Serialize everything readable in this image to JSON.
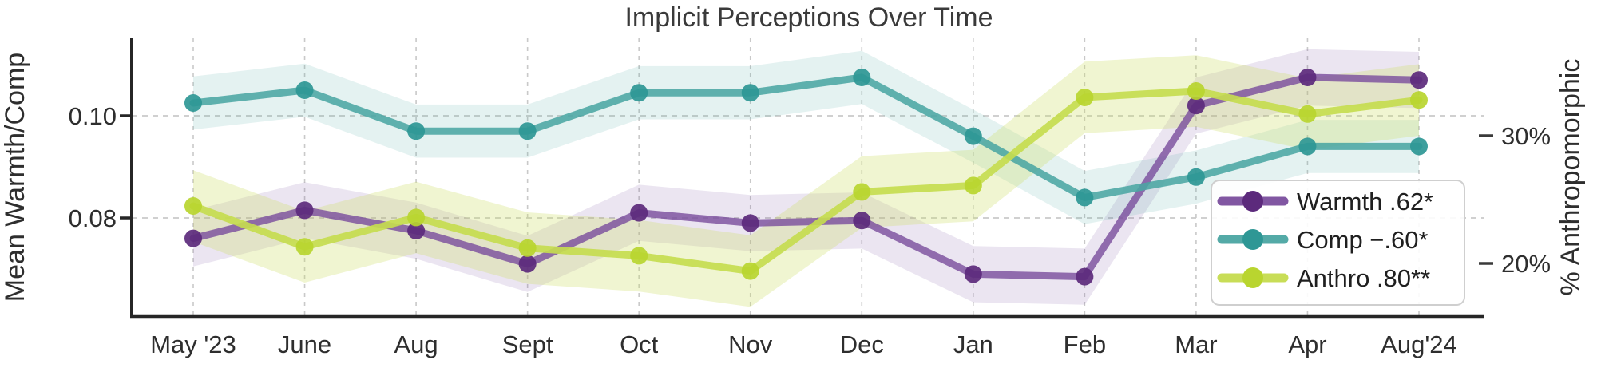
{
  "page": {
    "background": "#ffffff"
  },
  "chart_data": {
    "type": "line",
    "title": "Implicit Perceptions Over Time",
    "categories": [
      "May '23",
      "June",
      "Aug",
      "Sept",
      "Oct",
      "Nov",
      "Dec",
      "Jan",
      "Feb",
      "Mar",
      "Apr",
      "Aug'24"
    ],
    "left_axis": {
      "label": "Mean Warmth/Comp",
      "ticks": [
        {
          "value": 0.1,
          "label": "0.10"
        },
        {
          "value": 0.08,
          "label": "0.08"
        }
      ],
      "range": [
        0.061,
        0.115
      ]
    },
    "right_axis": {
      "label": "% Anthropomorphic",
      "ticks": [
        {
          "value": 30,
          "label": "30%"
        },
        {
          "value": 20,
          "label": "20%"
        }
      ],
      "range": [
        15.9,
        37.6
      ]
    },
    "grid": true,
    "legend": {
      "position": "lower right"
    },
    "colors": {
      "warmth_line": "#7b4f9e",
      "warmth_marker": "#5c2a7c",
      "comp_line": "#4ba6a3",
      "comp_marker": "#2e9795",
      "anthro_line": "#c6dc4f",
      "anthro_marker": "#b9d52f",
      "spine": "#262626",
      "gridline": "#c9c9c9"
    },
    "series": [
      {
        "name": "Warmth",
        "legend_label": "Warmth .62*",
        "axis": "left",
        "color": "#7b4f9e",
        "marker_color": "#5c2a7c",
        "band_color": "rgba(123,79,158,0.15)",
        "band_halfwidth": 0.0055,
        "line_opacity": 0.82,
        "values": [
          0.076,
          0.0815,
          0.0775,
          0.071,
          0.081,
          0.079,
          0.0795,
          0.069,
          0.0685,
          0.102,
          0.1075,
          0.107
        ]
      },
      {
        "name": "Comp",
        "legend_label": "Comp −.60*",
        "axis": "left",
        "color": "#4ba6a3",
        "marker_color": "#2e9795",
        "band_color": "rgba(75,166,163,0.15)",
        "band_halfwidth": 0.0052,
        "line_opacity": 0.88,
        "values": [
          0.1025,
          0.105,
          0.097,
          0.097,
          0.1045,
          0.1045,
          0.1075,
          0.096,
          0.084,
          0.088,
          0.094,
          0.094
        ]
      },
      {
        "name": "Anthro",
        "legend_label": "Anthro .80**",
        "axis": "right",
        "color": "#c6dc4f",
        "marker_color": "#b9d52f",
        "band_color": "rgba(204,223,102,0.30)",
        "band_halfwidth": 2.8,
        "line_opacity": 0.92,
        "values": [
          24.5,
          21.3,
          23.6,
          21.2,
          20.6,
          19.4,
          25.6,
          26.1,
          33.0,
          33.5,
          31.7,
          32.8
        ]
      }
    ]
  }
}
